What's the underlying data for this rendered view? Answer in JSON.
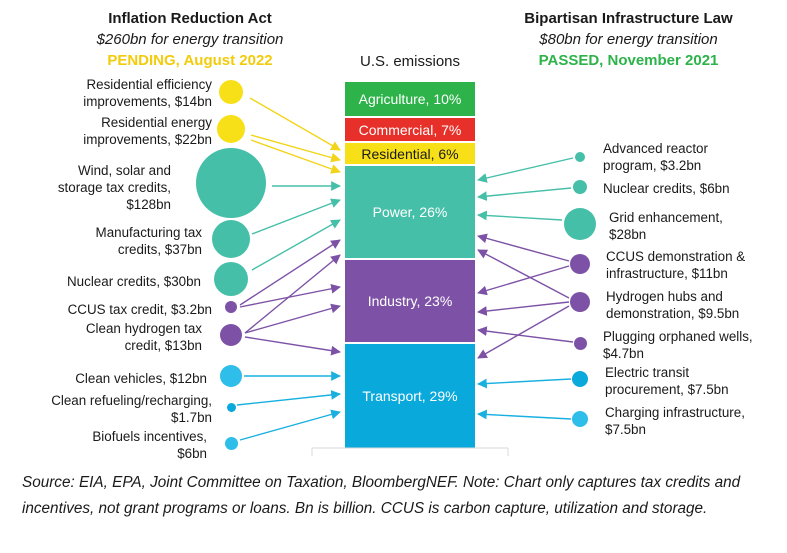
{
  "left_header": {
    "title": "Inflation Reduction Act",
    "subtitle": "$260bn for energy transition",
    "status": "PENDING, August 2022",
    "status_color": "#f2cc0c"
  },
  "right_header": {
    "title": "Bipartisan Infrastructure Law",
    "subtitle": "$80bn for energy transition",
    "status": "PASSED, November 2021",
    "status_color": "#2db34a"
  },
  "stack": {
    "title": "U.S. emissions",
    "segments": [
      {
        "label": "Agriculture, 10%",
        "sector": "Agriculture",
        "share": 10,
        "color": "#2db34a",
        "text_color": "#ffffff"
      },
      {
        "label": "Commercial, 7%",
        "sector": "Commercial",
        "share": 7,
        "color": "#e8302a",
        "text_color": "#ffffff"
      },
      {
        "label": "Residential, 6%",
        "sector": "Residential",
        "share": 6,
        "color": "#f7e018",
        "text_color": "#1a1a1a"
      },
      {
        "label": "Power, 26%",
        "sector": "Power",
        "share": 26,
        "color": "#46bfa9",
        "text_color": "#ffffff"
      },
      {
        "label": "Industry,  23%",
        "sector": "Industry",
        "share": 23,
        "color": "#7d52a6",
        "text_color": "#ffffff"
      },
      {
        "label": "Transport, 29%",
        "sector": "Transport",
        "share": 29,
        "color": "#0aa9dc",
        "text_color": "#ffffff"
      }
    ]
  },
  "left_items": [
    {
      "label": "Residential efficiency\nimprovements, $14bn",
      "amount_bn": 14,
      "color": "#f7e018",
      "targets": [
        "Residential"
      ]
    },
    {
      "label": "Residential energy\nimprovements, $22bn",
      "amount_bn": 22,
      "color": "#f7e018",
      "targets": [
        "Residential"
      ]
    },
    {
      "label": "Wind, solar and\nstorage tax credits,\n$128bn",
      "amount_bn": 128,
      "color": "#46bfa9",
      "targets": [
        "Power"
      ]
    },
    {
      "label": "Manufacturing  tax\ncredits, $37bn",
      "amount_bn": 37,
      "color": "#46bfa9",
      "targets": [
        "Power"
      ]
    },
    {
      "label": "Nuclear credits, $30bn",
      "amount_bn": 30,
      "color": "#46bfa9",
      "targets": [
        "Power"
      ]
    },
    {
      "label": "CCUS tax credit, $3.2bn",
      "amount_bn": 3.2,
      "color": "#7d52a6",
      "targets": [
        "Power",
        "Industry"
      ]
    },
    {
      "label": "Clean hydrogen tax\ncredit, $13bn",
      "amount_bn": 13,
      "color": "#7d52a6",
      "targets": [
        "Power",
        "Industry",
        "Transport"
      ]
    },
    {
      "label": "Clean vehicles, $12bn",
      "amount_bn": 12,
      "color": "#2fbde9",
      "targets": [
        "Transport"
      ]
    },
    {
      "label": "Clean refueling/recharging,\n$1.7bn",
      "amount_bn": 1.7,
      "color": "#0aa9dc",
      "targets": [
        "Transport"
      ]
    },
    {
      "label": "Biofuels incentives,\n$6bn",
      "amount_bn": 6,
      "color": "#2fbde9",
      "targets": [
        "Transport"
      ]
    }
  ],
  "right_items": [
    {
      "label": "Advanced reactor\nprogram, $3.2bn",
      "amount_bn": 3.2,
      "color": "#46bfa9",
      "targets": [
        "Power"
      ]
    },
    {
      "label": "Nuclear credits, $6bn",
      "amount_bn": 6,
      "color": "#46bfa9",
      "targets": [
        "Power"
      ]
    },
    {
      "label": "Grid enhancement,\n$28bn",
      "amount_bn": 28,
      "color": "#46bfa9",
      "targets": [
        "Power"
      ]
    },
    {
      "label": "CCUS demonstration &\ninfrastructure, $11bn",
      "amount_bn": 11,
      "color": "#7d52a6",
      "targets": [
        "Power",
        "Industry"
      ]
    },
    {
      "label": "Hydrogen hubs and\ndemonstration, $9.5bn",
      "amount_bn": 9.5,
      "color": "#7d52a6",
      "targets": [
        "Power",
        "Industry",
        "Transport"
      ]
    },
    {
      "label": "Plugging orphaned wells,\n$4.7bn",
      "amount_bn": 4.7,
      "color": "#7d52a6",
      "targets": [
        "Industry"
      ]
    },
    {
      "label": "Electric transit\nprocurement, $7.5bn",
      "amount_bn": 7.5,
      "color": "#0aa9dc",
      "targets": [
        "Transport"
      ]
    },
    {
      "label": "Charging infrastructure,\n$7.5bn",
      "amount_bn": 7.5,
      "color": "#2fbde9",
      "targets": [
        "Transport"
      ]
    }
  ],
  "footnote": "Source: EIA, EPA, Joint Committee on Taxation, BloombergNEF. Note: Chart only captures tax credits and incentives, not grant programs or loans. Bn is billion. CCUS is carbon capture, utilization and storage."
}
